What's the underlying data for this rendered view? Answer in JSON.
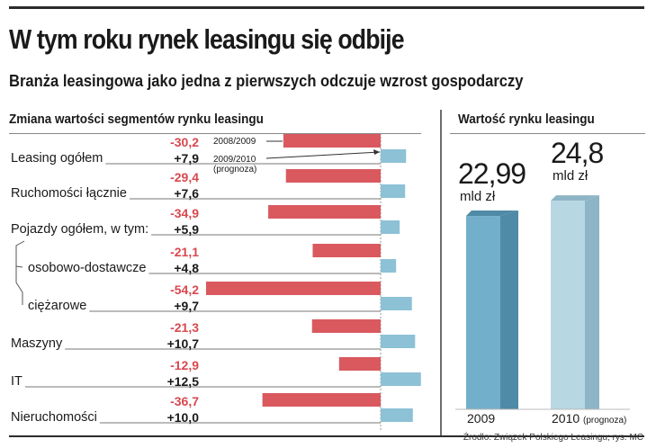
{
  "title": "W tym roku rynek leasingu się odbije",
  "subtitle": "Branża leasingowa jako jedna z pierwszych odczuje wzrost gospodarczy",
  "source": "Źrodło: Związek Polskiego Leasingu;  rys. MC",
  "colors": {
    "negative": "#d9595f",
    "positive": "#8dc1d6",
    "neg_text": "#d9484f",
    "bar2009_front": "#72afca",
    "bar2009_side": "#4f8aa6",
    "bar2010_front": "#b7d7e3",
    "bar2010_side": "#8db5c6"
  },
  "chart_data": [
    {
      "type": "bar",
      "title": "Zmiana wartości segmentów rynku leasingu",
      "categories": [
        "Leasing ogółem",
        "Ruchomości łącznie",
        "Pojazdy ogółem, w tym:",
        "osobowo-dostawcze",
        "ciężarowe",
        "Maszyny",
        "IT",
        "Nieruchomości"
      ],
      "series": [
        {
          "name": "2008/2009",
          "values": [
            -30.2,
            -29.4,
            -34.9,
            -21.1,
            -54.2,
            -21.3,
            -12.9,
            -36.7
          ],
          "labels": [
            "-30,2",
            "-29,4",
            "-34,9",
            "-21,1",
            "-54,2",
            "-21,3",
            "-12,9",
            "-36,7"
          ]
        },
        {
          "name": "2009/2010",
          "values": [
            7.9,
            7.6,
            5.9,
            4.8,
            9.7,
            10.7,
            12.5,
            10.0
          ],
          "labels": [
            "+7,9",
            "+7,6",
            "+5,9",
            "+4,8",
            "+9,7",
            "+10,7",
            "+12,5",
            "+10,0"
          ]
        }
      ],
      "legend": [
        "2008/2009",
        "2009/2010",
        "(prognoza)"
      ]
    },
    {
      "type": "bar",
      "title": "Wartość rynku leasingu",
      "categories": [
        "2009",
        "2010"
      ],
      "category_notes": [
        "",
        "(prognoza)"
      ],
      "values": [
        22.99,
        24.8
      ],
      "value_labels": [
        "22,99",
        "24,8"
      ],
      "unit": "mld zł"
    }
  ]
}
